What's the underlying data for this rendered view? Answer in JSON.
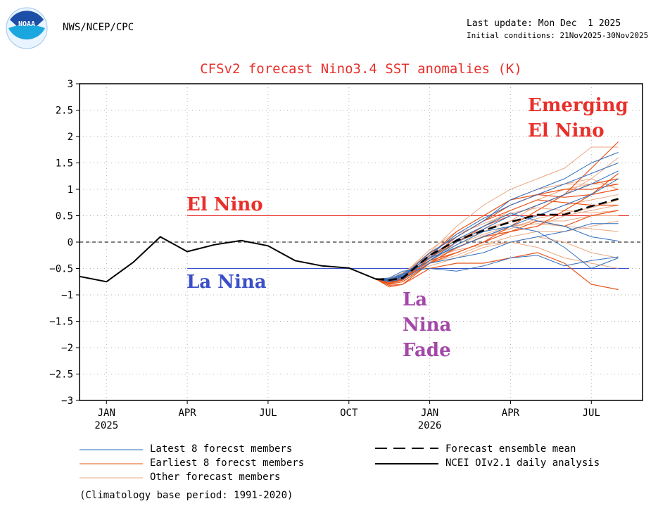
{
  "header": {
    "agency": "NWS/NCEP/CPC",
    "logo_text": "NOAA",
    "last_update": "Last update: Mon Dec  1 2025",
    "initial_conditions": "Initial conditions: 21Nov2025-30Nov2025"
  },
  "colors": {
    "title": "#e8302b",
    "el_nino": "#e8302b",
    "la_nina": "#3a4fc8",
    "la_nina_fade": "#a348a8",
    "latest_members": "#2f6fbf",
    "earliest_members": "#e8541a",
    "other_members": "#e9a883",
    "analysis": "#000000"
  },
  "annotations": {
    "el_nino": "El Nino",
    "la_nina": "La Nina",
    "la_nina_fade": [
      "La",
      "Nina",
      "Fade"
    ],
    "emerging": [
      "Emerging",
      "El Nino"
    ]
  },
  "legend": {
    "latest": "Latest 8 forecst members",
    "earliest": "Earliest 8 forecst members",
    "other": "Other forecast members",
    "mean": "Forecast ensemble mean",
    "analysis": "NCEI OIv2.1 daily analysis",
    "climatology": "(Climatology base period: 1991-2020)"
  },
  "chart_data": {
    "type": "line",
    "title": "CFSv2 forecast Nino3.4 SST anomalies (K)",
    "ylabel": "",
    "xlabel": "",
    "ylim": [
      -3,
      3
    ],
    "y_ticks": [
      3,
      2.5,
      2,
      1.5,
      1,
      0.5,
      0,
      -0.5,
      -1,
      -1.5,
      -2,
      -2.5,
      -3
    ],
    "x_range": [
      -1.0,
      19.9
    ],
    "x_ticks": [
      {
        "x": 0,
        "label": "JAN",
        "sub": "2025"
      },
      {
        "x": 3,
        "label": "APR",
        "sub": ""
      },
      {
        "x": 6,
        "label": "JUL",
        "sub": ""
      },
      {
        "x": 9,
        "label": "OCT",
        "sub": ""
      },
      {
        "x": 12,
        "label": "JAN",
        "sub": "2026"
      },
      {
        "x": 15,
        "label": "APR",
        "sub": ""
      },
      {
        "x": 18,
        "label": "JUL",
        "sub": ""
      }
    ],
    "x_units": "months since Jan 2025",
    "thresholds": {
      "el_nino": 0.5,
      "la_nina": -0.5,
      "zero": 0
    },
    "analysis": {
      "x": [
        -1.0,
        0.0,
        1.0,
        2.0,
        3.0,
        4.0,
        5.0,
        6.0,
        7.0,
        8.0,
        9.0,
        10.0,
        10.3
      ],
      "y": [
        -0.65,
        -0.75,
        -0.38,
        0.1,
        -0.18,
        -0.05,
        0.03,
        -0.07,
        -0.35,
        -0.45,
        -0.49,
        -0.7,
        -0.7
      ]
    },
    "ensemble_mean": {
      "x": [
        10.0,
        10.5,
        11.0,
        12.0,
        13.0,
        14.0,
        15.0,
        16.0,
        17.0,
        18.0,
        19.0
      ],
      "y": [
        -0.7,
        -0.72,
        -0.68,
        -0.25,
        0.03,
        0.22,
        0.38,
        0.52,
        0.52,
        0.68,
        0.82
      ]
    },
    "member_x": [
      10.0,
      10.5,
      11.0,
      12.0,
      13.0,
      14.0,
      15.0,
      16.0,
      17.0,
      18.0,
      19.0
    ],
    "latest_members": [
      [
        -0.7,
        -0.72,
        -0.65,
        -0.2,
        0.1,
        0.4,
        0.8,
        1.0,
        1.2,
        1.5,
        1.7
      ],
      [
        -0.7,
        -0.7,
        -0.6,
        -0.3,
        -0.1,
        0.1,
        0.3,
        0.5,
        0.7,
        0.9,
        1.2
      ],
      [
        -0.7,
        -0.75,
        -0.7,
        -0.4,
        -0.3,
        -0.2,
        0.0,
        0.1,
        0.2,
        0.35,
        0.35
      ],
      [
        -0.7,
        -0.68,
        -0.55,
        -0.5,
        -0.55,
        -0.45,
        -0.3,
        -0.25,
        -0.45,
        -0.35,
        -0.28
      ],
      [
        -0.7,
        -0.72,
        -0.62,
        -0.35,
        0.0,
        0.25,
        0.5,
        0.7,
        0.9,
        1.1,
        1.35
      ],
      [
        -0.7,
        -0.7,
        -0.6,
        -0.3,
        0.05,
        0.3,
        0.55,
        0.4,
        0.3,
        0.1,
        0.02
      ],
      [
        -0.7,
        -0.73,
        -0.66,
        -0.25,
        0.15,
        0.45,
        0.7,
        0.9,
        1.1,
        1.3,
        1.5
      ],
      [
        -0.7,
        -0.71,
        -0.64,
        -0.35,
        -0.05,
        0.2,
        0.3,
        0.2,
        -0.1,
        -0.5,
        -0.3
      ]
    ],
    "earliest_members": [
      [
        -0.7,
        -0.8,
        -0.75,
        -0.4,
        -0.2,
        0.0,
        0.3,
        0.6,
        0.9,
        1.4,
        1.9
      ],
      [
        -0.7,
        -0.78,
        -0.7,
        -0.3,
        0.1,
        0.4,
        0.7,
        0.9,
        1.0,
        1.0,
        1.1
      ],
      [
        -0.7,
        -0.82,
        -0.8,
        -0.5,
        -0.4,
        -0.4,
        -0.3,
        -0.2,
        -0.4,
        -0.8,
        -0.9
      ],
      [
        -0.7,
        -0.75,
        -0.68,
        -0.25,
        0.2,
        0.5,
        0.8,
        0.9,
        0.85,
        0.9,
        1.0
      ],
      [
        -0.7,
        -0.76,
        -0.72,
        -0.3,
        0.0,
        0.3,
        0.5,
        0.7,
        0.9,
        1.1,
        1.2
      ],
      [
        -0.7,
        -0.85,
        -0.8,
        -0.4,
        -0.1,
        0.1,
        0.2,
        0.3,
        0.6,
        0.9,
        1.3
      ],
      [
        -0.7,
        -0.74,
        -0.66,
        -0.2,
        0.1,
        0.4,
        0.6,
        0.8,
        0.75,
        0.7,
        0.7
      ],
      [
        -0.7,
        -0.79,
        -0.72,
        -0.35,
        -0.2,
        0.0,
        0.2,
        0.4,
        0.3,
        0.5,
        0.6
      ]
    ],
    "other_members": [
      [
        -0.7,
        -0.7,
        -0.6,
        -0.2,
        0.3,
        0.7,
        1.0,
        1.2,
        1.4,
        1.8,
        1.8
      ],
      [
        -0.7,
        -0.72,
        -0.6,
        -0.3,
        0.0,
        0.3,
        0.6,
        0.8,
        1.0,
        1.1,
        1.1
      ],
      [
        -0.7,
        -0.68,
        -0.62,
        -0.4,
        -0.2,
        0.0,
        0.2,
        0.3,
        0.5,
        0.6,
        0.7
      ],
      [
        -0.7,
        -0.71,
        -0.66,
        -0.35,
        -0.1,
        0.1,
        0.3,
        0.4,
        0.4,
        0.5,
        0.5
      ],
      [
        -0.7,
        -0.73,
        -0.64,
        -0.2,
        0.1,
        0.4,
        0.7,
        0.9,
        1.1,
        1.2,
        1.0
      ],
      [
        -0.7,
        -0.75,
        -0.7,
        -0.45,
        -0.3,
        -0.1,
        0.0,
        0.1,
        0.0,
        -0.2,
        -0.3
      ],
      [
        -0.7,
        -0.7,
        -0.58,
        -0.25,
        0.05,
        0.25,
        0.4,
        0.5,
        0.7,
        0.8,
        0.9
      ],
      [
        -0.7,
        -0.72,
        -0.67,
        -0.3,
        0.0,
        0.2,
        0.4,
        0.7,
        0.9,
        1.2,
        1.6
      ],
      [
        -0.7,
        -0.69,
        -0.61,
        -0.15,
        0.2,
        0.5,
        0.8,
        1.0,
        1.1,
        1.1,
        1.2
      ],
      [
        -0.7,
        -0.74,
        -0.69,
        -0.4,
        -0.25,
        -0.05,
        0.1,
        0.2,
        0.2,
        0.3,
        0.4
      ],
      [
        -0.7,
        -0.71,
        -0.63,
        -0.28,
        -0.05,
        0.15,
        0.3,
        0.35,
        0.3,
        0.25,
        0.2
      ],
      [
        -0.7,
        -0.73,
        -0.65,
        -0.32,
        -0.15,
        -0.05,
        0.0,
        -0.1,
        -0.3,
        -0.4,
        -0.5
      ],
      [
        -0.7,
        -0.7,
        -0.62,
        -0.22,
        0.15,
        0.35,
        0.55,
        0.65,
        0.6,
        0.55,
        0.6
      ],
      [
        -0.7,
        -0.72,
        -0.64,
        -0.38,
        -0.12,
        0.12,
        0.25,
        0.45,
        0.55,
        0.65,
        0.8
      ]
    ]
  }
}
